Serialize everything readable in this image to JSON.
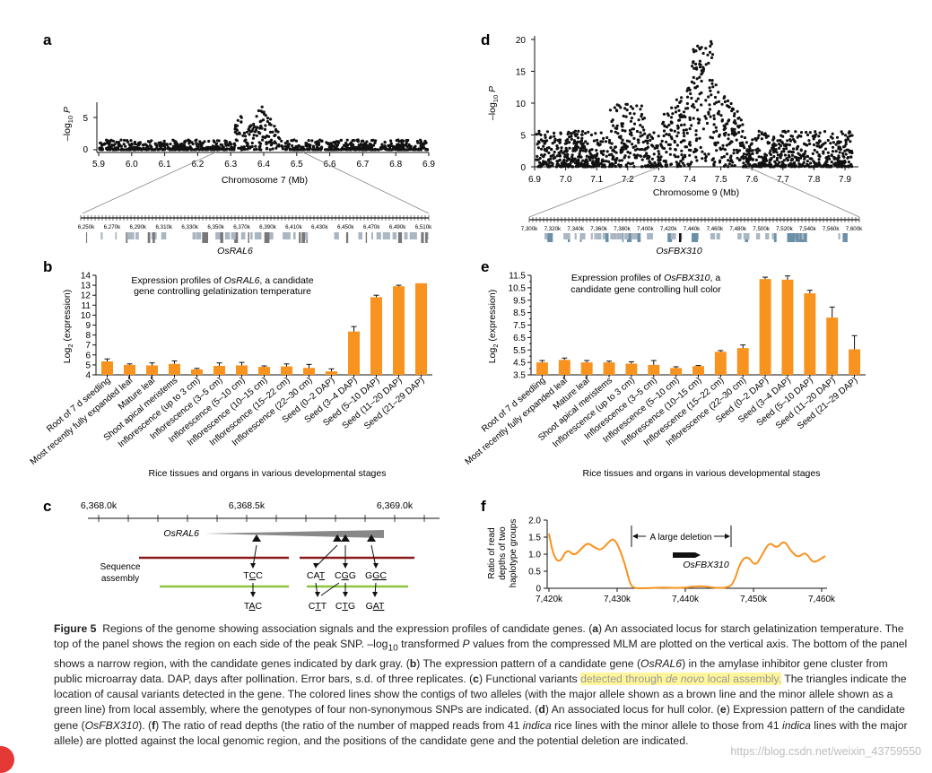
{
  "colors": {
    "orange": "#f7931e",
    "brown": "#8b1a1a",
    "green": "#8cc63f",
    "gray": "#888888",
    "black": "#111111"
  },
  "panel_a": {
    "label": "a",
    "ylabel": "–log10 P",
    "yticks": [
      "0",
      "5"
    ],
    "xticks": [
      "5.9",
      "6.0",
      "6.1",
      "6.2",
      "6.3",
      "6.4",
      "6.5",
      "6.6",
      "6.7",
      "6.8",
      "6.9"
    ],
    "xlabel": "Chromosome 7 (Mb)",
    "zoom_ticks": [
      "6,250k",
      "6,270k",
      "6,290k",
      "6,310k",
      "6,330k",
      "6,350k",
      "6,370k",
      "6,390k",
      "6,410k",
      "6,430k",
      "6,450k",
      "6,470k",
      "6,490k",
      "6,510k"
    ],
    "gene": "OsRAL6"
  },
  "panel_d": {
    "label": "d",
    "ylabel": "–log10 P",
    "yticks": [
      "0",
      "5",
      "10",
      "15",
      "20"
    ],
    "xticks": [
      "6.9",
      "7.0",
      "7.1",
      "7.2",
      "7.3",
      "7.4",
      "7.5",
      "7.6",
      "7.7",
      "7.8",
      "7.9"
    ],
    "xlabel": "Chromosome 9 (Mb)",
    "zoom_ticks": [
      "7,300k",
      "7,320k",
      "7,340k",
      "7,360k",
      "7,380k",
      "7,400k",
      "7,420k",
      "7,440k",
      "7,460k",
      "7,480k",
      "7,500k",
      "7,520k",
      "7,540k",
      "7,560k",
      "7,600k"
    ],
    "gene": "OsFBX310"
  },
  "panel_b": {
    "label": "b",
    "ylabel": "Log2 (expression)",
    "title_line1": "Expression profiles of OsRAL6, a candidate",
    "title_line2": "gene controlling gelatinization temperature",
    "xlabel": "Rice tissues and organs in various developmental stages",
    "chart_data": {
      "type": "bar",
      "ylim": [
        4,
        14
      ],
      "yticks": [
        "4",
        "5",
        "6",
        "7",
        "8",
        "9",
        "10",
        "11",
        "12",
        "13",
        "14"
      ],
      "categories": [
        "Root of 7 d seedling",
        "Most recently fully expanded leaf",
        "Mature leaf",
        "Shoot apical meristems",
        "Inflorescence (up to 3 cm)",
        "Inflorescence (3–5 cm)",
        "Inflorescence (5–10 cm)",
        "Inflorescence (10–15 cm)",
        "Inflorescence (15–22 cm)",
        "Inflorescence (22–30 cm)",
        "Seed (0–2 DAP)",
        "Seed (3–4 DAP)",
        "Seed (5–10 DAP)",
        "Seed (11–20 DAP)",
        "Seed (21–29 DAP)"
      ],
      "values": [
        5.35,
        5.0,
        4.95,
        5.1,
        4.55,
        4.9,
        4.95,
        4.8,
        4.85,
        4.7,
        4.35,
        8.35,
        11.8,
        12.9,
        13.2
      ],
      "errors": [
        0.25,
        0.1,
        0.25,
        0.3,
        0.1,
        0.3,
        0.3,
        0.1,
        0.25,
        0.35,
        0.25,
        0.5,
        0.2,
        0.1,
        0.0
      ]
    }
  },
  "panel_e": {
    "label": "e",
    "ylabel": "Log2 (expression)",
    "title_line1": "Expression profiles of OsFBX310, a",
    "title_line2": "candidate gene controlling hull color",
    "xlabel": "Rice tissues and organs in various developmental stages",
    "chart_data": {
      "type": "bar",
      "ylim": [
        3.5,
        11.5
      ],
      "yticks": [
        "3.5",
        "4.5",
        "5.5",
        "6.5",
        "7.5",
        "8.5",
        "9.5",
        "10.5",
        "11.5"
      ],
      "yminor": [
        "4",
        "5",
        "6",
        "7",
        "8",
        "9",
        "10",
        "11"
      ],
      "categories": [
        "Root of 7 d seedling",
        "Most recently fully expanded leaf",
        "Mature leaf",
        "Shoot apical meristems",
        "Inflorescence (up to 3 cm)",
        "Inflorescence (3–5 cm)",
        "Inflorescence (5–10 cm)",
        "Inflorescence (10–15 cm)",
        "Inflorescence (15–22 cm)",
        "Inflorescence (22–30 cm)",
        "Seed (0–2 DAP)",
        "Seed (3–4 DAP)",
        "Seed (5–10 DAP)",
        "Seed (11–20 DAP)",
        "Seed (21–29 DAP)"
      ],
      "values": [
        4.5,
        4.7,
        4.5,
        4.5,
        4.4,
        4.3,
        4.05,
        4.2,
        5.35,
        5.65,
        11.2,
        11.15,
        10.05,
        8.1,
        5.55
      ],
      "errors": [
        0.15,
        0.15,
        0.15,
        0.1,
        0.15,
        0.35,
        0.1,
        0.05,
        0.1,
        0.25,
        0.15,
        0.3,
        0.25,
        0.85,
        1.1
      ]
    }
  },
  "panel_c": {
    "label": "c",
    "ticks": [
      "6,368.0k",
      "6,368.5k",
      "6,369.0k"
    ],
    "gene": "OsRAL6",
    "assembly_label_1": "Sequence",
    "assembly_label_2": "assembly",
    "codons": [
      {
        "major_pre": "T",
        "major_u": "C",
        "major_post": "C",
        "minor_pre": "T",
        "minor_u": "A",
        "minor_post": "C"
      },
      {
        "major_pre": "CA",
        "major_u": "T",
        "major_post": "",
        "minor_pre": "C",
        "minor_u": "T",
        "minor_post": "T"
      },
      {
        "major_pre": "C",
        "major_u": "G",
        "major_post": "G",
        "minor_pre": "C",
        "minor_u": "T",
        "minor_post": "G"
      },
      {
        "major_pre": "G",
        "major_u": "GC",
        "major_post": "",
        "minor_pre": "G",
        "minor_u": "AT",
        "minor_post": ""
      }
    ]
  },
  "panel_f": {
    "label": "f",
    "ylabel_1": "Ratio of read",
    "ylabel_2": "depths of two",
    "ylabel_3": "haplotype groups",
    "yticks": [
      "0",
      "0.5",
      "1.0",
      "1.5",
      "2.0"
    ],
    "xticks": [
      "7,420k",
      "7,430k",
      "7,440k",
      "7,450k",
      "7,460k"
    ],
    "deletion_label": "A large deletion",
    "gene": "OsFBX310"
  },
  "caption": {
    "fig": "Figure 5",
    "t1": "Regions of the genome showing association signals and the expression profiles of candidate genes. (",
    "a": "a",
    "t2": ") An associated locus for starch gelatinization temperature. The top of the panel shows the region on each side of the peak SNP. –log",
    "sub10": "10",
    "t3": " transformed ",
    "P": "P",
    "t4": " values from the compressed MLM are plotted on the vertical axis. The bottom of the panel shows a narrow region, with the candidate genes indicated by dark gray. (",
    "b": "b",
    "t5": ") The expression pattern of a candidate gene (",
    "g1": "OsRAL6",
    "t6": ") in the amylase inhibitor gene cluster from public microarray data. DAP, days after pollination. Error bars, s.d. of three replicates. (",
    "c": "c",
    "t7": ") Functional variants ",
    "hl1": "detected through ",
    "hl_it": "de novo",
    "hl2": " local assembly.",
    "t8": " The triangles indicate the location of causal variants detected in the gene. The colored lines show the contigs of two alleles (with the major allele shown as a brown line and the minor allele shown as a green line) from local assembly, where the genotypes of four non-synonymous SNPs are indicated. (",
    "d": "d",
    "t9": ") An associated locus for hull color. (",
    "e": "e",
    "t10": ") Expression pattern of the candidate gene (",
    "g2": "OsFBX310",
    "t11": "). (",
    "f": "f",
    "t12": ") The ratio of read depths (the ratio of the number of mapped reads from 41 ",
    "ind1": "indica",
    "t13": " rice lines with the minor allele to those from 41 ",
    "ind2": "indica",
    "t14": " lines with the major allele) are plotted against the local genomic region, and the positions of the candidate gene and the potential deletion are indicated."
  },
  "watermark": "https://blog.csdn.net/weixin_43759550"
}
